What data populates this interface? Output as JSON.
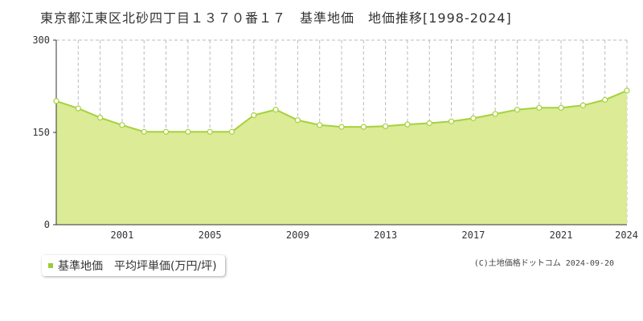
{
  "title": "東京都江東区北砂四丁目１３７０番１７　基準地価　地価推移[1998-2024]",
  "legend": {
    "label": "基準地価　平均坪単価(万円/坪)"
  },
  "credit": "(C)土地価格ドットコム 2024-09-20",
  "colors": {
    "fill": "#dbeb96",
    "line": "#a6d13d",
    "point_fill": "#ffffff",
    "point_stroke": "#a6d13d",
    "swatch": "#99cc33"
  },
  "chart_data": {
    "type": "area",
    "title": "東京都江東区北砂四丁目１３７０番１７　基準地価　地価推移[1998-2024]",
    "xlabel": "",
    "ylabel": "",
    "xlim": [
      1998,
      2024
    ],
    "ylim": [
      0,
      300
    ],
    "yticks": [
      0,
      150,
      300
    ],
    "xticks": [
      2001,
      2005,
      2009,
      2013,
      2017,
      2021,
      2024
    ],
    "grid": true,
    "legend_position": "bottom-left",
    "series": [
      {
        "name": "基準地価　平均坪単価(万円/坪)",
        "x": [
          1998,
          1999,
          2000,
          2001,
          2002,
          2003,
          2004,
          2005,
          2006,
          2007,
          2008,
          2009,
          2010,
          2011,
          2012,
          2013,
          2014,
          2015,
          2016,
          2017,
          2018,
          2019,
          2020,
          2021,
          2022,
          2023,
          2024
        ],
        "values": [
          201,
          189,
          174,
          162,
          151,
          151,
          151,
          151,
          151,
          178,
          187,
          170,
          162,
          159,
          159,
          160,
          163,
          165,
          168,
          173,
          180,
          187,
          190,
          190,
          194,
          203,
          218
        ]
      }
    ]
  }
}
